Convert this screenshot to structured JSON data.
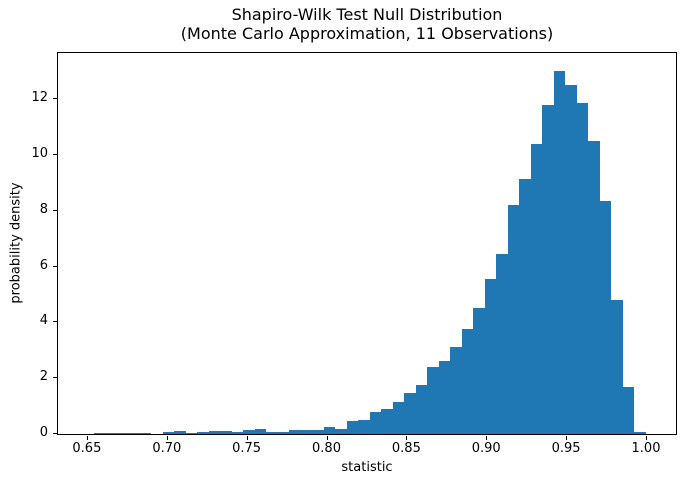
{
  "chart_data": {
    "type": "bar",
    "subtype": "histogram",
    "title": "Shapiro-Wilk Test Null Distribution",
    "subtitle": "(Monte Carlo Approximation, 11 Observations)",
    "xlabel": "statistic",
    "ylabel": "probability density",
    "bar_color": "#1f77b4",
    "text_color": "#000000",
    "grid": false,
    "legend": null,
    "bin_start": 0.6544,
    "bin_width": 0.0072,
    "densities": [
      0.03,
      0.03,
      0.04,
      0.04,
      0.03,
      0.0,
      0.06,
      0.1,
      0.03,
      0.06,
      0.12,
      0.1,
      0.06,
      0.13,
      0.18,
      0.08,
      0.08,
      0.13,
      0.16,
      0.13,
      0.24,
      0.19,
      0.45,
      0.52,
      0.8,
      0.9,
      1.13,
      1.48,
      1.75,
      2.4,
      2.6,
      3.1,
      3.75,
      4.5,
      5.55,
      6.45,
      8.2,
      9.15,
      10.4,
      11.8,
      13.0,
      12.5,
      11.85,
      10.5,
      8.35,
      4.8,
      1.7,
      0.08
    ],
    "x_ticks": [
      0.65,
      0.7,
      0.75,
      0.8,
      0.85,
      0.9,
      0.95,
      1.0
    ],
    "x_tick_labels": [
      "0.65",
      "0.70",
      "0.75",
      "0.80",
      "0.85",
      "0.90",
      "0.95",
      "1.00"
    ],
    "y_ticks": [
      0,
      2,
      4,
      6,
      8,
      10,
      12
    ],
    "y_tick_labels": [
      "0",
      "2",
      "4",
      "6",
      "8",
      "10",
      "12"
    ],
    "xlim": [
      0.6319,
      1.0188
    ],
    "ylim": [
      0,
      13.65
    ]
  }
}
